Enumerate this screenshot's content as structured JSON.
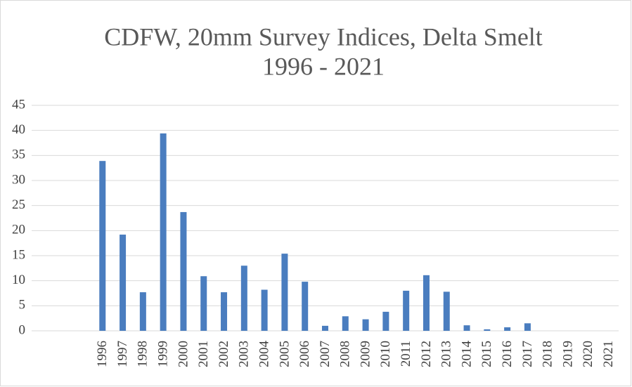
{
  "chart_data": {
    "type": "bar",
    "title": "CDFW, 20mm Survey Indices, Delta Smelt",
    "subtitle": "1996 - 2021",
    "categories": [
      null,
      null,
      null,
      "1996",
      "1997",
      "1998",
      "1999",
      "2000",
      "2001",
      "2002",
      "2003",
      "2004",
      "2005",
      "2006",
      "2007",
      "2008",
      "2009",
      "2010",
      "2011",
      "2012",
      "2013",
      "2014",
      "2015",
      "2016",
      "2017",
      "2018",
      "2019",
      "2020",
      "2021"
    ],
    "values": [
      null,
      null,
      null,
      33.9,
      19.2,
      7.7,
      39.4,
      23.7,
      10.9,
      7.7,
      13.0,
      8.2,
      15.4,
      9.8,
      1.0,
      2.9,
      2.3,
      3.8,
      8.0,
      11.1,
      7.8,
      1.1,
      0.3,
      0.7,
      1.5,
      0,
      0,
      0,
      0
    ],
    "color": "#4a7dbf",
    "ylim": [
      0,
      45
    ],
    "yticks": [
      0,
      5,
      10,
      15,
      20,
      25,
      30,
      35,
      40,
      45
    ],
    "grid": true
  }
}
